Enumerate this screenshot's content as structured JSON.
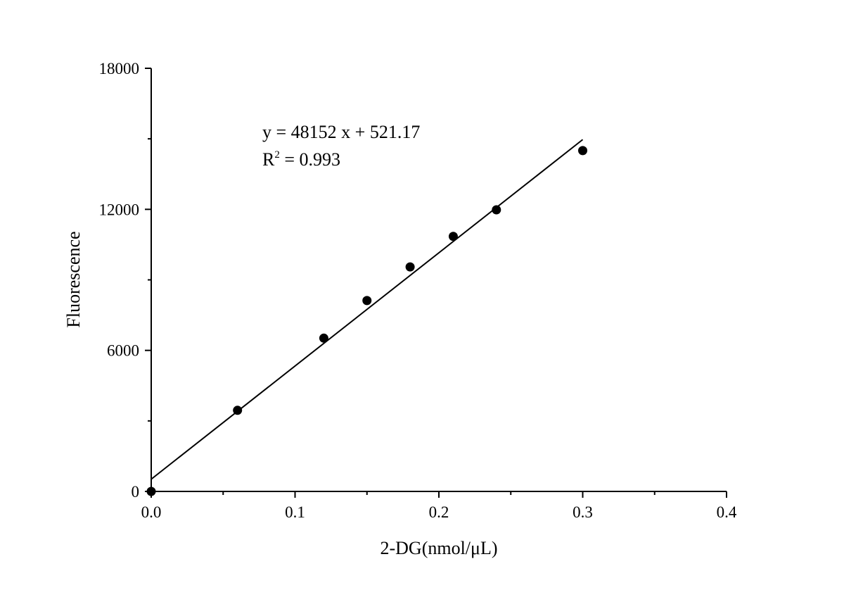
{
  "chart_data": {
    "type": "scatter",
    "xlabel": "2-DG(nmol/μL)",
    "ylabel": "Fluorescence",
    "xlim": [
      0,
      0.4
    ],
    "ylim": [
      0,
      18000
    ],
    "x_ticks": [
      0.0,
      0.1,
      0.2,
      0.3,
      0.4
    ],
    "x_tick_labels": [
      "0.0",
      "0.1",
      "0.2",
      "0.3",
      "0.4"
    ],
    "y_ticks": [
      0,
      6000,
      12000,
      18000
    ],
    "y_tick_labels": [
      "0",
      "6000",
      "12000",
      "18000"
    ],
    "grid": false,
    "series": [
      {
        "type": "scatter",
        "x": [
          0,
          0.06,
          0.12,
          0.15,
          0.18,
          0.21,
          0.24,
          0.3
        ],
        "y": [
          0,
          3450,
          6520,
          8120,
          9550,
          10850,
          11980,
          14500
        ],
        "color": "#000000"
      },
      {
        "type": "line",
        "x": [
          0,
          0.3
        ],
        "y": [
          521.17,
          14966.77
        ],
        "color": "#000000"
      }
    ],
    "equation": {
      "line1": "y = 48152 x + 521.17",
      "r_prefix": "R",
      "r_sup": "2",
      "r_rest": " = 0.993"
    }
  }
}
